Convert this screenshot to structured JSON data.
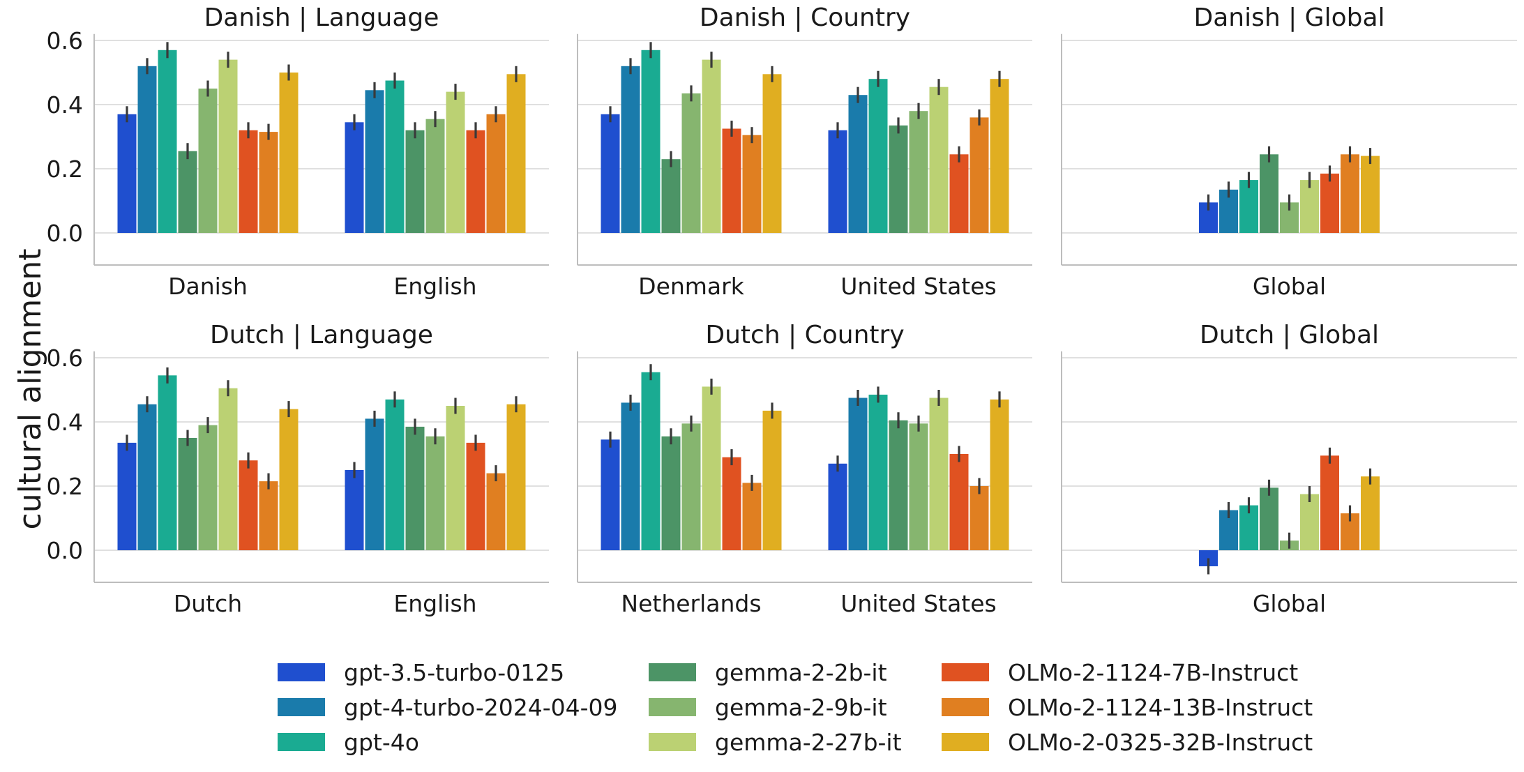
{
  "chart_data": {
    "type": "bar",
    "ylabel": "cultural alignment",
    "ylim": [
      -0.1,
      0.62
    ],
    "yticks": [
      "0.0",
      "0.2",
      "0.4",
      "0.6"
    ],
    "grid": "horizontal",
    "legend_placement": "bottom-center",
    "series": [
      {
        "name": "gpt-3.5-turbo-0125",
        "color": "#1f4fcf"
      },
      {
        "name": "gpt-4-turbo-2024-04-09",
        "color": "#1a7bab"
      },
      {
        "name": "gpt-4o",
        "color": "#1aab92"
      },
      {
        "name": "gemma-2-2b-it",
        "color": "#4c9466"
      },
      {
        "name": "gemma-2-9b-it",
        "color": "#86b56f"
      },
      {
        "name": "gemma-2-27b-it",
        "color": "#bbd173"
      },
      {
        "name": "OLMo-2-1124-7B-Instruct",
        "color": "#e05221"
      },
      {
        "name": "OLMo-2-1124-13B-Instruct",
        "color": "#e07f21"
      },
      {
        "name": "OLMo-2-0325-32B-Instruct",
        "color": "#e0ae21"
      }
    ],
    "panels": [
      {
        "title": "Danish | Language",
        "groups": [
          {
            "label": "Danish",
            "values": [
              0.37,
              0.52,
              0.57,
              0.255,
              0.45,
              0.54,
              0.32,
              0.315,
              0.5
            ]
          },
          {
            "label": "English",
            "values": [
              0.345,
              0.445,
              0.475,
              0.32,
              0.355,
              0.44,
              0.32,
              0.37,
              0.495
            ]
          }
        ]
      },
      {
        "title": "Danish | Country",
        "groups": [
          {
            "label": "Denmark",
            "values": [
              0.37,
              0.52,
              0.57,
              0.23,
              0.435,
              0.54,
              0.325,
              0.305,
              0.495
            ]
          },
          {
            "label": "United States",
            "values": [
              0.32,
              0.43,
              0.48,
              0.335,
              0.38,
              0.455,
              0.245,
              0.36,
              0.48
            ]
          }
        ]
      },
      {
        "title": "Danish | Global",
        "groups": [
          {
            "label": "Global",
            "values": [
              0.095,
              0.135,
              0.165,
              0.245,
              0.095,
              0.165,
              0.185,
              0.245,
              0.24
            ]
          }
        ]
      },
      {
        "title": "Dutch | Language",
        "groups": [
          {
            "label": "Dutch",
            "values": [
              0.335,
              0.455,
              0.545,
              0.35,
              0.39,
              0.505,
              0.28,
              0.215,
              0.44
            ]
          },
          {
            "label": "English",
            "values": [
              0.25,
              0.41,
              0.47,
              0.385,
              0.355,
              0.45,
              0.335,
              0.24,
              0.455
            ]
          }
        ]
      },
      {
        "title": "Dutch | Country",
        "groups": [
          {
            "label": "Netherlands",
            "values": [
              0.345,
              0.46,
              0.555,
              0.355,
              0.395,
              0.51,
              0.29,
              0.21,
              0.435
            ]
          },
          {
            "label": "United States",
            "values": [
              0.27,
              0.475,
              0.485,
              0.405,
              0.395,
              0.475,
              0.3,
              0.2,
              0.47
            ]
          }
        ]
      },
      {
        "title": "Dutch | Global",
        "groups": [
          {
            "label": "Global",
            "values": [
              -0.05,
              0.125,
              0.14,
              0.195,
              0.03,
              0.175,
              0.295,
              0.115,
              0.23
            ]
          }
        ]
      }
    ]
  }
}
